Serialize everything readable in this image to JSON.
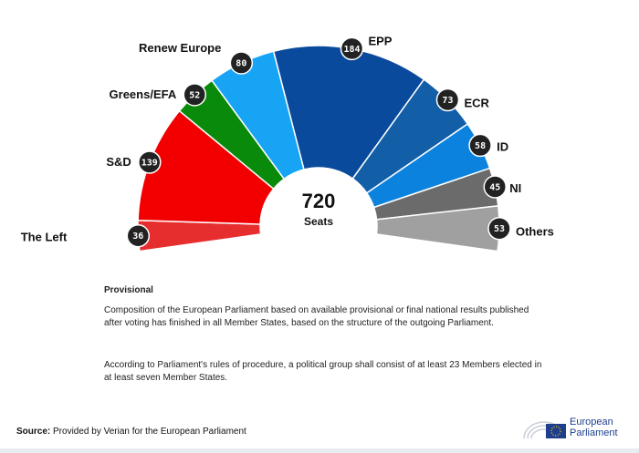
{
  "chart_data": {
    "type": "pie",
    "subtype": "hemicycle",
    "total": "720",
    "total_label": "Seats",
    "series": [
      {
        "name": "The Left",
        "value": 36,
        "color": "#e62e2e"
      },
      {
        "name": "S&D",
        "value": 139,
        "color": "#f20000"
      },
      {
        "name": "Greens/EFA",
        "value": 52,
        "color": "#0a8a0a"
      },
      {
        "name": "Renew Europe",
        "value": 80,
        "color": "#17a4f5"
      },
      {
        "name": "EPP",
        "value": 184,
        "color": "#0a4a9c"
      },
      {
        "name": "ECR",
        "value": 73,
        "color": "#125fa8"
      },
      {
        "name": "ID",
        "value": 58,
        "color": "#0a82de"
      },
      {
        "name": "NI",
        "value": 45,
        "color": "#6b6b6b"
      },
      {
        "name": "Others",
        "value": 53,
        "color": "#a0a0a0"
      }
    ]
  },
  "notes": {
    "title": "Provisional",
    "paragraph1": "Composition of the European Parliament based on available provisional or final national results published after voting has finished in all Member States, based on the structure of the outgoing Parliament.",
    "paragraph2": "According to Parliament's rules of procedure, a political group shall consist of at least 23 Members elected in at least seven Member States."
  },
  "source": {
    "label": "Source:",
    "text": "Provided by Verian for the European Parliament"
  },
  "logo": {
    "line1": "European",
    "line2": "Parliament",
    "icon": "european-parliament-logo-icon"
  }
}
